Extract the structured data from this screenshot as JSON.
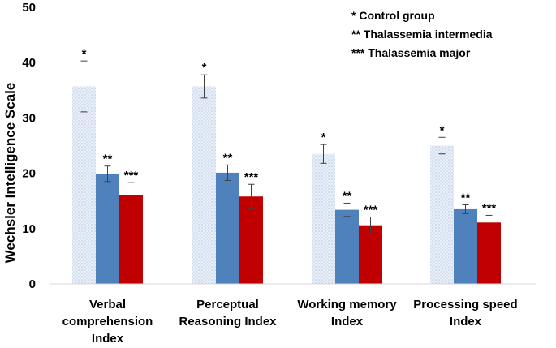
{
  "chart_data": {
    "type": "bar",
    "title": "",
    "xlabel": "",
    "ylabel": "Wechsler Intelligence Scale",
    "ylim": [
      0,
      50
    ],
    "yticks": [
      0,
      10,
      20,
      30,
      40,
      50
    ],
    "categories": [
      [
        "Verbal",
        "comprehension",
        "Index"
      ],
      [
        "Perceptual",
        "Reasoning Index"
      ],
      [
        "Working memory",
        "Index"
      ],
      [
        "Processing speed",
        "Index"
      ]
    ],
    "series": [
      {
        "name": "Control group",
        "marker": "*",
        "color": "#dbe5f3",
        "pattern": "dotted",
        "values": [
          35.7,
          35.7,
          23.5,
          25.0
        ],
        "errors": [
          4.6,
          2.1,
          1.7,
          1.5
        ]
      },
      {
        "name": "Thalassemia intermedia",
        "marker": "**",
        "color": "#4f81bd",
        "pattern": "solid",
        "values": [
          19.9,
          20.1,
          13.4,
          13.5
        ],
        "errors": [
          1.4,
          1.4,
          1.2,
          0.8
        ]
      },
      {
        "name": "Thalassemia major",
        "marker": "***",
        "color": "#c00000",
        "pattern": "solid",
        "values": [
          16.0,
          15.8,
          10.6,
          11.1
        ],
        "errors": [
          2.3,
          2.2,
          1.5,
          1.3
        ]
      }
    ],
    "legend": {
      "position": "top-right",
      "entries": [
        "* Control group",
        "** Thalassemia intermedia",
        "*** Thalassemia major"
      ]
    },
    "grid": false
  }
}
